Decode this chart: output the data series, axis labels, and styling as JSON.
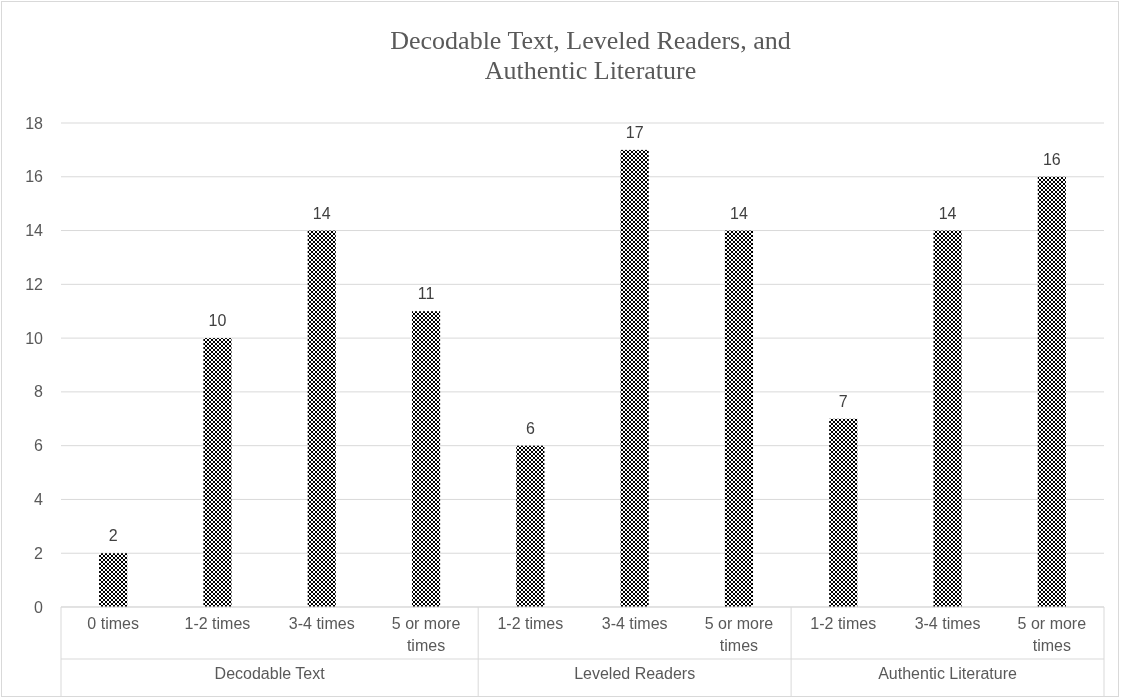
{
  "chart_data": {
    "type": "bar",
    "title": "Decodable Text, Leveled Readers, and Authentic Literature",
    "categories": [
      "0 times",
      "1-2 times",
      "3-4 times",
      "5 or more times",
      "1-2 times",
      "3-4 times",
      "5 or more times",
      "1-2 times",
      "3-4 times",
      "5 or more times"
    ],
    "values": [
      2,
      10,
      14,
      11,
      6,
      17,
      14,
      7,
      14,
      16
    ],
    "color": "#000000",
    "annotations": [
      "Decodable Text",
      "Leveled Readers",
      "Authentic Literature"
    ],
    "ylim": [
      0,
      18
    ],
    "yticks": [
      0,
      2,
      4,
      6,
      8,
      10,
      12,
      14,
      16,
      18
    ],
    "grid": "y",
    "data_labels": true
  }
}
